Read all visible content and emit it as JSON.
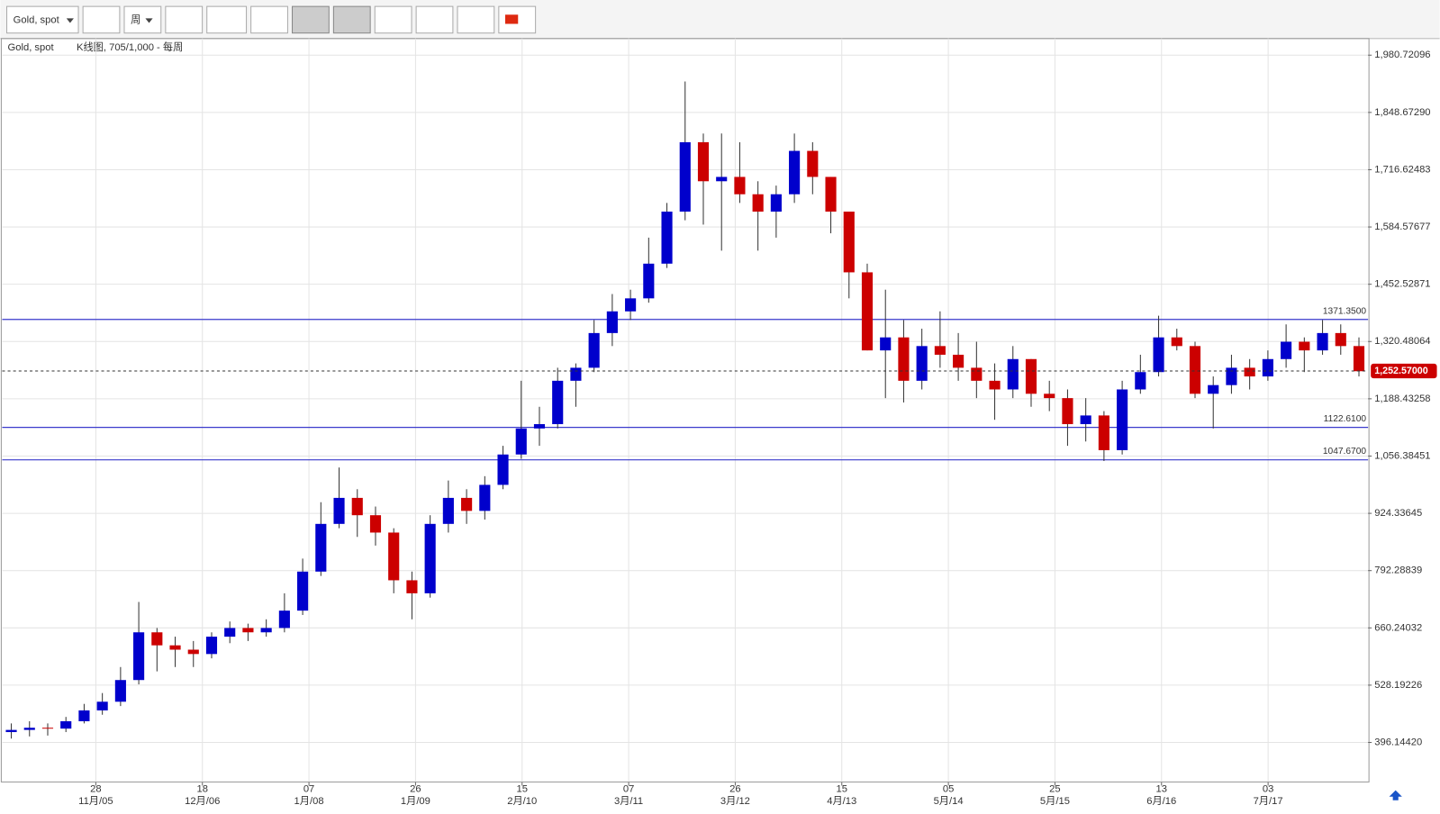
{
  "toolbar": {
    "symbol": "Gold, spot",
    "period": "周"
  },
  "legend": {
    "symbol": "Gold, spot",
    "info": "K线图, 705/1,000 - 每周"
  },
  "chart_data": {
    "type": "candlestick",
    "up_color": "#0000cc",
    "down_color": "#cc0000",
    "open": [
      420,
      425,
      430,
      428,
      445,
      470,
      490,
      540,
      650,
      620,
      610,
      600,
      640,
      660,
      650,
      660,
      700,
      790,
      900,
      960,
      920,
      880,
      770,
      740,
      900,
      960,
      930,
      990,
      1060,
      1120,
      1130,
      1230,
      1260,
      1340,
      1390,
      1420,
      1500,
      1620,
      1780,
      1690,
      1700,
      1660,
      1620,
      1660,
      1760,
      1700,
      1620,
      1480,
      1300,
      1330,
      1230,
      1310,
      1290,
      1260,
      1230,
      1210,
      1280,
      1200,
      1190,
      1130,
      1150,
      1070,
      1210,
      1250,
      1330,
      1310,
      1200,
      1220,
      1260,
      1240,
      1280,
      1320,
      1300,
      1340,
      1310
    ],
    "high": [
      440,
      445,
      440,
      455,
      485,
      510,
      570,
      720,
      660,
      640,
      630,
      650,
      675,
      670,
      680,
      740,
      820,
      950,
      1030,
      980,
      940,
      890,
      790,
      920,
      1000,
      980,
      1010,
      1080,
      1230,
      1170,
      1260,
      1270,
      1370,
      1430,
      1440,
      1560,
      1640,
      1920,
      1800,
      1800,
      1780,
      1690,
      1680,
      1800,
      1780,
      1700,
      1620,
      1500,
      1440,
      1370,
      1350,
      1390,
      1340,
      1320,
      1270,
      1310,
      1280,
      1230,
      1210,
      1190,
      1160,
      1230,
      1290,
      1380,
      1350,
      1320,
      1240,
      1290,
      1280,
      1300,
      1360,
      1330,
      1370,
      1360,
      1330
    ],
    "low": [
      405,
      410,
      412,
      420,
      440,
      460,
      480,
      530,
      560,
      570,
      570,
      590,
      625,
      630,
      640,
      650,
      690,
      780,
      890,
      870,
      850,
      740,
      680,
      730,
      880,
      900,
      910,
      980,
      1050,
      1080,
      1120,
      1170,
      1250,
      1310,
      1370,
      1410,
      1490,
      1600,
      1590,
      1530,
      1640,
      1530,
      1560,
      1640,
      1660,
      1570,
      1420,
      1300,
      1190,
      1180,
      1210,
      1260,
      1230,
      1190,
      1140,
      1190,
      1170,
      1160,
      1080,
      1090,
      1045,
      1060,
      1200,
      1240,
      1300,
      1190,
      1120,
      1200,
      1210,
      1230,
      1260,
      1250,
      1290,
      1290,
      1240
    ],
    "close": [
      425,
      430,
      428,
      445,
      470,
      490,
      540,
      650,
      620,
      610,
      600,
      640,
      660,
      650,
      660,
      700,
      790,
      900,
      960,
      920,
      880,
      770,
      740,
      900,
      960,
      930,
      990,
      1060,
      1120,
      1130,
      1230,
      1260,
      1340,
      1390,
      1420,
      1500,
      1620,
      1780,
      1690,
      1700,
      1660,
      1620,
      1660,
      1760,
      1700,
      1620,
      1480,
      1300,
      1330,
      1230,
      1310,
      1290,
      1260,
      1230,
      1210,
      1280,
      1200,
      1190,
      1130,
      1150,
      1070,
      1210,
      1250,
      1330,
      1310,
      1200,
      1220,
      1260,
      1240,
      1280,
      1320,
      1300,
      1340,
      1310,
      1252
    ],
    "ylim": [
      305,
      2019
    ],
    "yticks": [
      {
        "value": 396.1442,
        "label": "396.14420"
      },
      {
        "value": 528.19226,
        "label": "528.19226"
      },
      {
        "value": 660.24032,
        "label": "660.24032"
      },
      {
        "value": 792.28839,
        "label": "792.28839"
      },
      {
        "value": 924.33645,
        "label": "924.33645"
      },
      {
        "value": 1056.38451,
        "label": "1,056.38451"
      },
      {
        "value": 1188.43258,
        "label": "1,188.43258"
      },
      {
        "value": 1320.48064,
        "label": "1,320.48064"
      },
      {
        "value": 1452.52871,
        "label": "1,452.52871"
      },
      {
        "value": 1584.57677,
        "label": "1,584.57677"
      },
      {
        "value": 1716.62483,
        "label": "1,716.62483"
      },
      {
        "value": 1848.6729,
        "label": "1,848.67290"
      },
      {
        "value": 1980.72096,
        "label": "1,980.72096"
      }
    ],
    "xtick_labels": [
      {
        "day": "28",
        "month": "11月/05"
      },
      {
        "day": "18",
        "month": "12月/06"
      },
      {
        "day": "07",
        "month": "1月/08"
      },
      {
        "day": "26",
        "month": "1月/09"
      },
      {
        "day": "15",
        "month": "2月/10"
      },
      {
        "day": "07",
        "month": "3月/11"
      },
      {
        "day": "26",
        "month": "3月/12"
      },
      {
        "day": "15",
        "month": "4月/13"
      },
      {
        "day": "05",
        "month": "5月/14"
      },
      {
        "day": "25",
        "month": "5月/15"
      },
      {
        "day": "13",
        "month": "6月/16"
      },
      {
        "day": "03",
        "month": "7月/17"
      }
    ],
    "hlines": [
      {
        "value": 1371.35,
        "label": "1371.3500"
      },
      {
        "value": 1122.61,
        "label": "1122.6100"
      },
      {
        "value": 1047.67,
        "label": "1047.6700"
      }
    ],
    "last_price": {
      "value": 1252.57,
      "label": "1,252.57000"
    },
    "grid": true
  }
}
